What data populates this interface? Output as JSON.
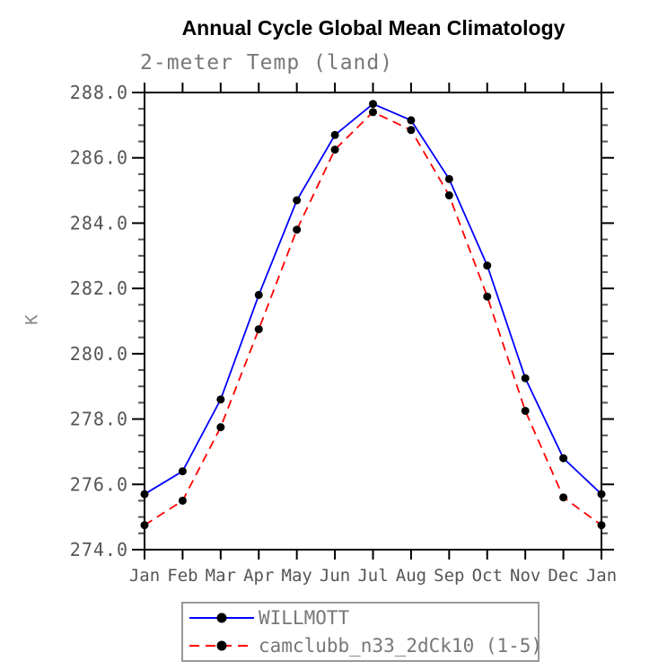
{
  "chart_data": {
    "type": "line",
    "title": "Annual Cycle Global Mean Climatology",
    "subtitle": "2-meter Temp (land)",
    "ylabel": "K",
    "x_labels": [
      "Jan",
      "Feb",
      "Mar",
      "Apr",
      "May",
      "Jun",
      "Jul",
      "Aug",
      "Sep",
      "Oct",
      "Nov",
      "Dec",
      "Jan"
    ],
    "ylim": [
      274.0,
      288.0
    ],
    "ytick_step": 2.0,
    "yminor_step": 0.5,
    "ytick_labels": [
      "274.0",
      "276.0",
      "278.0",
      "280.0",
      "282.0",
      "284.0",
      "286.0",
      "288.0"
    ],
    "grid": false,
    "series": [
      {
        "name": "WILLMOTT",
        "color": "#0000ff",
        "line_style": "solid",
        "marker": "filled-circle",
        "marker_color": "#000000",
        "values": [
          275.7,
          276.4,
          278.6,
          281.8,
          284.7,
          286.7,
          287.65,
          287.15,
          285.35,
          282.7,
          279.25,
          276.8,
          275.7
        ]
      },
      {
        "name": "camclubb_n33_2dCk10 (1-5)",
        "color": "#ff0000",
        "line_style": "dashed",
        "marker": "filled-circle",
        "marker_color": "#000000",
        "values": [
          274.75,
          275.5,
          277.75,
          280.75,
          283.8,
          286.25,
          287.4,
          286.85,
          284.85,
          281.75,
          278.25,
          275.6,
          274.75
        ]
      }
    ],
    "legend": {
      "position": "bottom-center",
      "border": true
    }
  }
}
